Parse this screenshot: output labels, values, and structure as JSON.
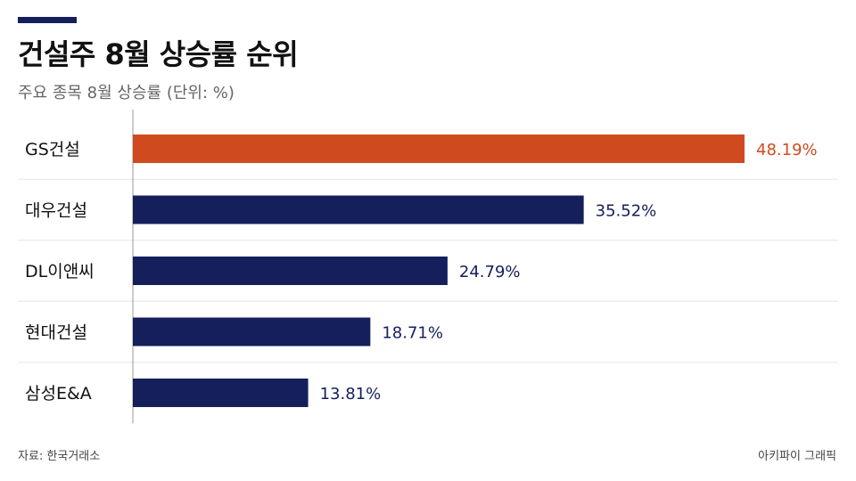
{
  "header": {
    "title": "건설주 8월 상승률 순위",
    "subtitle": "주요 종목 8월 상승률 (단위: %)"
  },
  "footer": {
    "source": "자료: 한국거래소",
    "credit": "아키파이 그래픽"
  },
  "colors": {
    "highlight": "#d04a1f",
    "default": "#141f5c",
    "accent": "#141f5c"
  },
  "chart_data": {
    "type": "bar",
    "orientation": "horizontal",
    "title": "건설주 8월 상승률 순위",
    "subtitle": "주요 종목 8월 상승률 (단위: %)",
    "categories": [
      "GS건설",
      "대우건설",
      "DL이앤씨",
      "현대건설",
      "삼성E&A"
    ],
    "values": [
      48.19,
      35.52,
      24.79,
      18.71,
      13.81
    ],
    "value_labels": [
      "48.19%",
      "35.52%",
      "24.79%",
      "18.71%",
      "13.81%"
    ],
    "highlight_index": 0,
    "xlim": [
      0,
      50
    ],
    "grid": true
  }
}
